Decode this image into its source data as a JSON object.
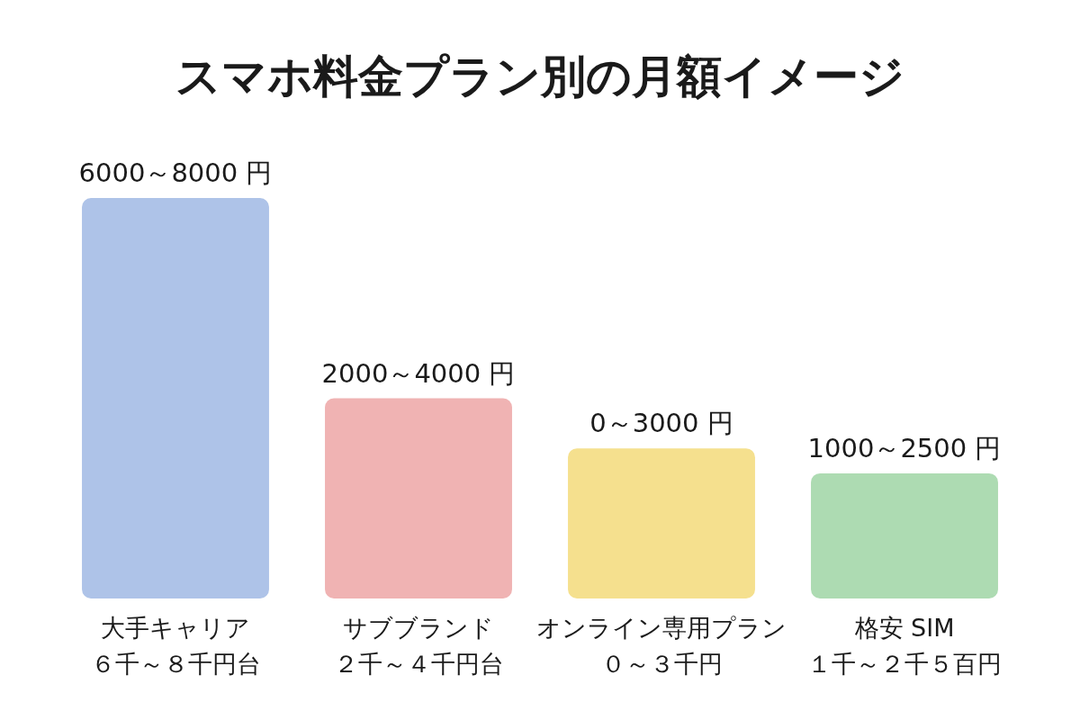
{
  "chart_data": {
    "type": "bar",
    "title": "スマホ料金プラン別の月額イメージ",
    "categories": [
      "大手キャリア",
      "サブブランド",
      "オンライン専用プラン",
      "格安 SIM"
    ],
    "values": [
      8000,
      4000,
      3000,
      2500
    ],
    "value_labels": [
      "6000～8000 円",
      "2000～4000 円",
      "0～3000 円",
      "1000～2500 円"
    ],
    "colors": [
      "#aec3e8",
      "#f0b3b3",
      "#f5e08e",
      "#addbb2"
    ],
    "annotations": [
      "６千～８千円台",
      "２千～４千円台",
      "０～３千円",
      "１千～２千５百円"
    ]
  }
}
